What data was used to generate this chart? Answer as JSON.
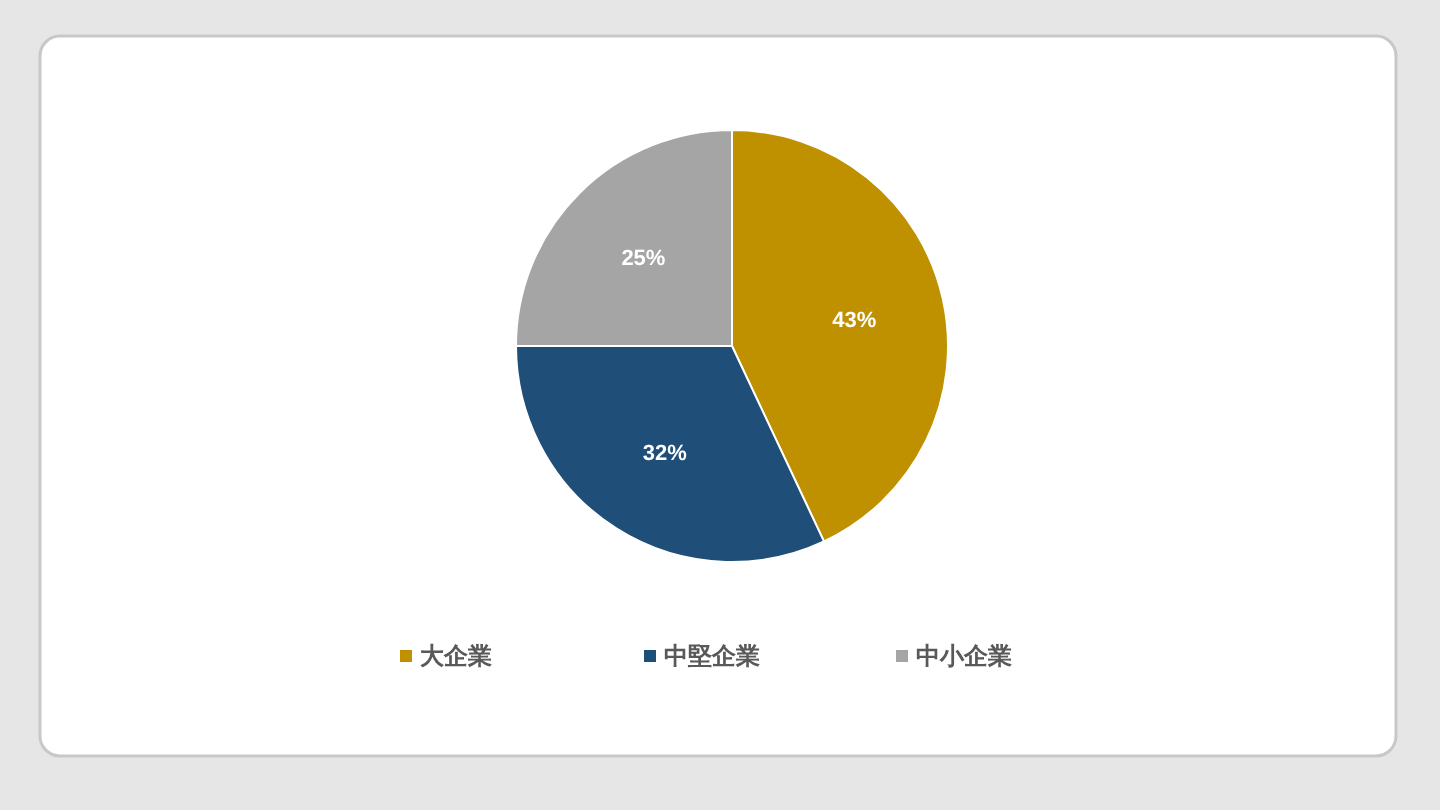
{
  "chart_data": {
    "type": "pie",
    "categories": [
      "大企業",
      "中堅企業",
      "中小企業"
    ],
    "values": [
      43,
      32,
      25
    ],
    "colors": [
      "#bf9000",
      "#1f4e79",
      "#a5a5a5"
    ],
    "value_labels": [
      "43%",
      "32%",
      "25%"
    ],
    "legend": "bottom"
  }
}
